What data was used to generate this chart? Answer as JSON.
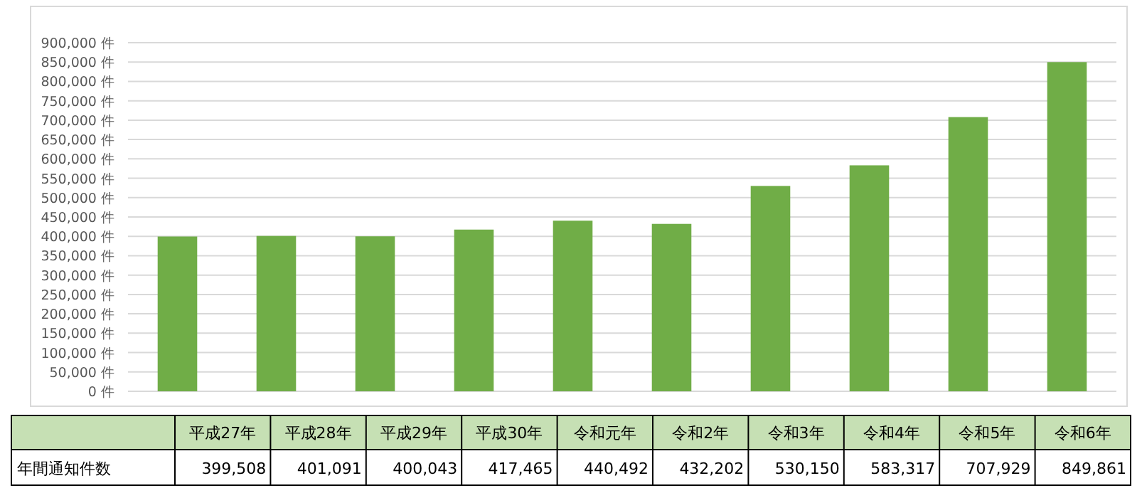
{
  "chart_data": {
    "type": "bar",
    "categories": [
      "平成27年",
      "平成28年",
      "平成29年",
      "平成30年",
      "令和元年",
      "令和2年",
      "令和3年",
      "令和4年",
      "令和5年",
      "令和6年"
    ],
    "series": [
      {
        "name": "年間通知件数",
        "color": "#70ad47",
        "values": [
          399508,
          401091,
          400043,
          417465,
          440492,
          432202,
          530150,
          583317,
          707929,
          849861
        ],
        "value_labels": [
          "399,508",
          "401,091",
          "400,043",
          "417,465",
          "440,492",
          "432,202",
          "530,150",
          "583,317",
          "707,929",
          "849,861"
        ]
      }
    ],
    "ylim": [
      0,
      900000
    ],
    "yticks": [
      {
        "value": 0,
        "label": "0 件"
      },
      {
        "value": 50000,
        "label": "50,000 件"
      },
      {
        "value": 100000,
        "label": "100,000 件"
      },
      {
        "value": 150000,
        "label": "150,000 件"
      },
      {
        "value": 200000,
        "label": "200,000 件"
      },
      {
        "value": 250000,
        "label": "250,000 件"
      },
      {
        "value": 300000,
        "label": "300,000 件"
      },
      {
        "value": 350000,
        "label": "350,000 件"
      },
      {
        "value": 400000,
        "label": "400,000 件"
      },
      {
        "value": 450000,
        "label": "450,000 件"
      },
      {
        "value": 500000,
        "label": "500,000 件"
      },
      {
        "value": 550000,
        "label": "550,000 件"
      },
      {
        "value": 600000,
        "label": "600,000 件"
      },
      {
        "value": 650000,
        "label": "650,000 件"
      },
      {
        "value": 700000,
        "label": "700,000 件"
      },
      {
        "value": 750000,
        "label": "750,000 件"
      },
      {
        "value": 800000,
        "label": "800,000 件"
      },
      {
        "value": 850000,
        "label": "850,000 件"
      },
      {
        "value": 900000,
        "label": "900,000 件"
      }
    ],
    "grid": "y",
    "legend": false
  }
}
